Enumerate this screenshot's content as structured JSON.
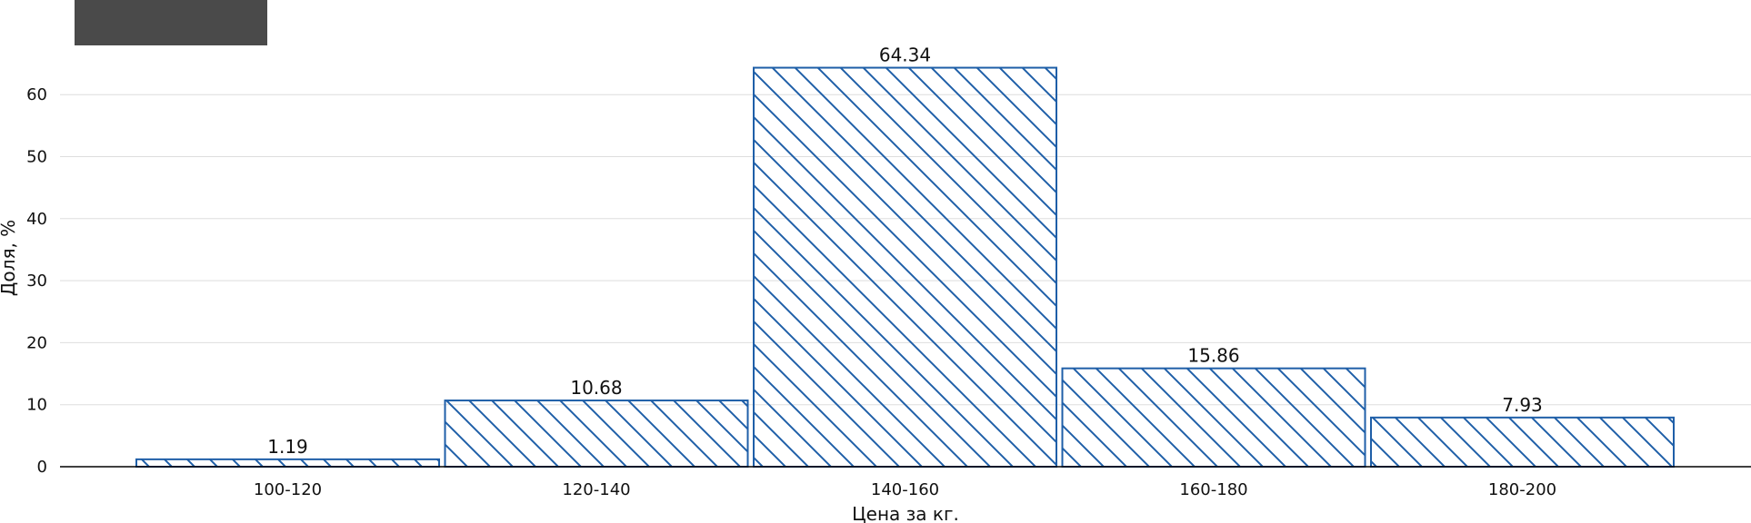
{
  "chart_data": {
    "type": "bar",
    "categories": [
      "100-120",
      "120-140",
      "140-160",
      "160-180",
      "180-200"
    ],
    "values": [
      1.19,
      10.68,
      64.34,
      15.86,
      7.93
    ],
    "xlabel": "Цена за кг.",
    "ylabel": "Доля, %",
    "ylim": [
      0,
      66
    ],
    "yticks": [
      0,
      10,
      20,
      30,
      40,
      50,
      60
    ],
    "grid": true,
    "bar_style": "diagonal-hatch",
    "colors": {
      "bar_edge": "#1f5fa8",
      "hatch": "#1f5fa8",
      "legend_box": "#4a4a4a"
    }
  }
}
